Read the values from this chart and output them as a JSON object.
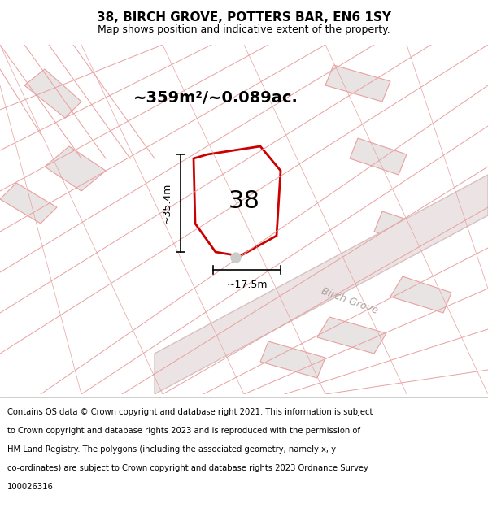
{
  "title": "38, BIRCH GROVE, POTTERS BAR, EN6 1SY",
  "subtitle": "Map shows position and indicative extent of the property.",
  "area_label": "~359m²/~0.089ac.",
  "plot_number": "38",
  "dim_width": "~17.5m",
  "dim_height": "~35.4m",
  "street_name": "Birch Grove",
  "footer_lines": [
    "Contains OS data © Crown copyright and database right 2021. This information is subject",
    "to Crown copyright and database rights 2023 and is reproduced with the permission of",
    "HM Land Registry. The polygons (including the associated geometry, namely x, y",
    "co-ordinates) are subject to Crown copyright and database rights 2023 Ordnance Survey",
    "100026316."
  ],
  "bg_color": "#ffffff",
  "map_bg": "#f5eeee",
  "plot_fill": "#ffffff",
  "plot_edge": "#cc0000",
  "line_color": "#e8a0a0",
  "block_color": "#e8e4e4",
  "street_fill": "#ece4e4",
  "street_edge": "#d8c0c0",
  "title_fontsize": 11,
  "subtitle_fontsize": 9,
  "footer_fontsize": 7.2
}
